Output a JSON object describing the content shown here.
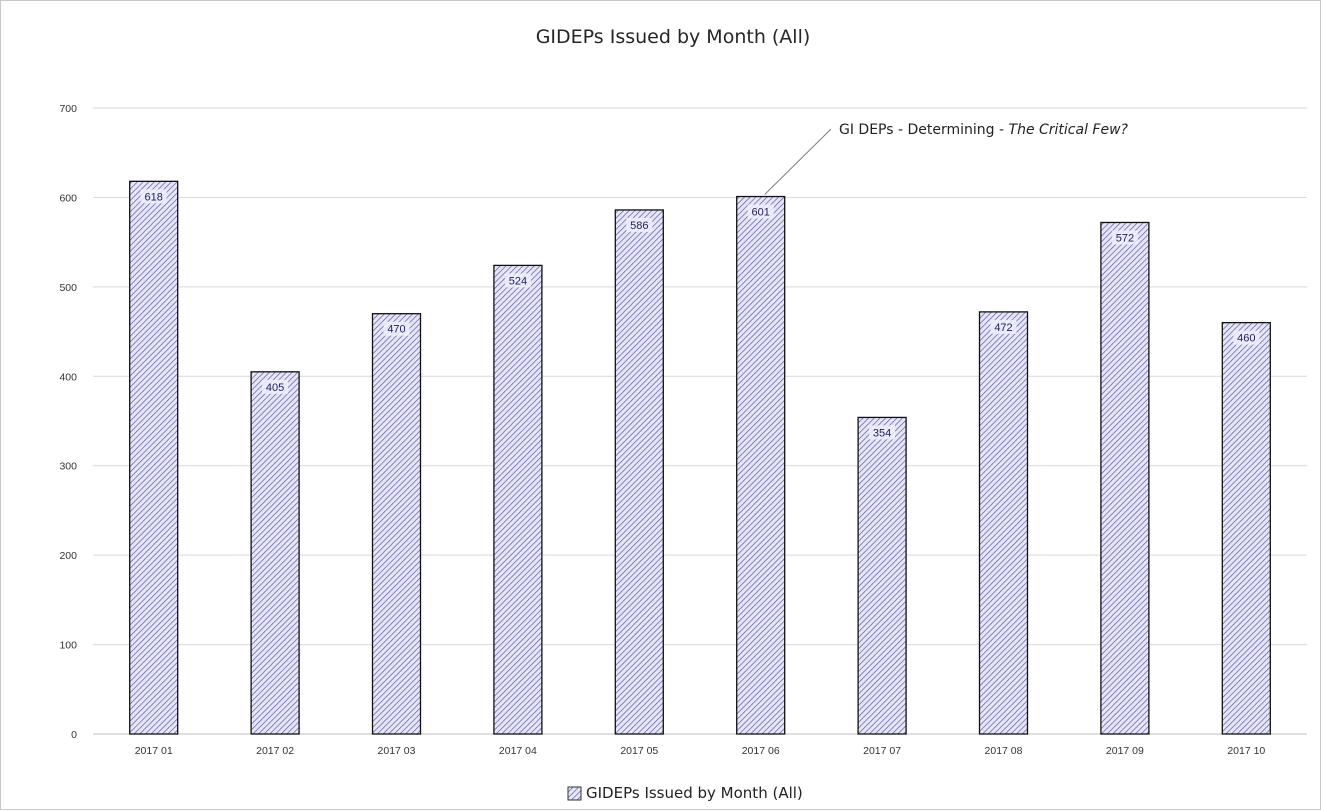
{
  "chart_data": {
    "type": "bar",
    "title": "GIDEPs Issued by Month (All)",
    "categories": [
      "2017 01",
      "2017 02",
      "2017 03",
      "2017 04",
      "2017 05",
      "2017 06",
      "2017 07",
      "2017 08",
      "2017 09",
      "2017 10"
    ],
    "series": [
      {
        "name": "GIDEPs Issued by Month (All)",
        "values": [
          618,
          405,
          470,
          524,
          586,
          601,
          354,
          472,
          572,
          460
        ]
      }
    ],
    "data_labels": [
      "618",
      "405",
      "470",
      "524",
      "586",
      "601",
      "354",
      "472",
      "572",
      "460"
    ],
    "y_ticks": [
      "0",
      "100",
      "200",
      "300",
      "400",
      "500",
      "600",
      "700"
    ],
    "ylim": [
      0,
      700
    ],
    "grid": true,
    "legend_position": "bottom",
    "bar_fill": "hatched",
    "colors": {
      "bar_hatch": "#5a5aa8",
      "bar_background": "#e6e6f7",
      "bar_outline": "#111111",
      "gridline": "#d9d9d9",
      "data_label": "#1e1e5a"
    },
    "annotation": {
      "text_plain": "GI DEPs - Determining - ",
      "text_italic": "The Critical Few?",
      "category": "2017 06"
    }
  }
}
